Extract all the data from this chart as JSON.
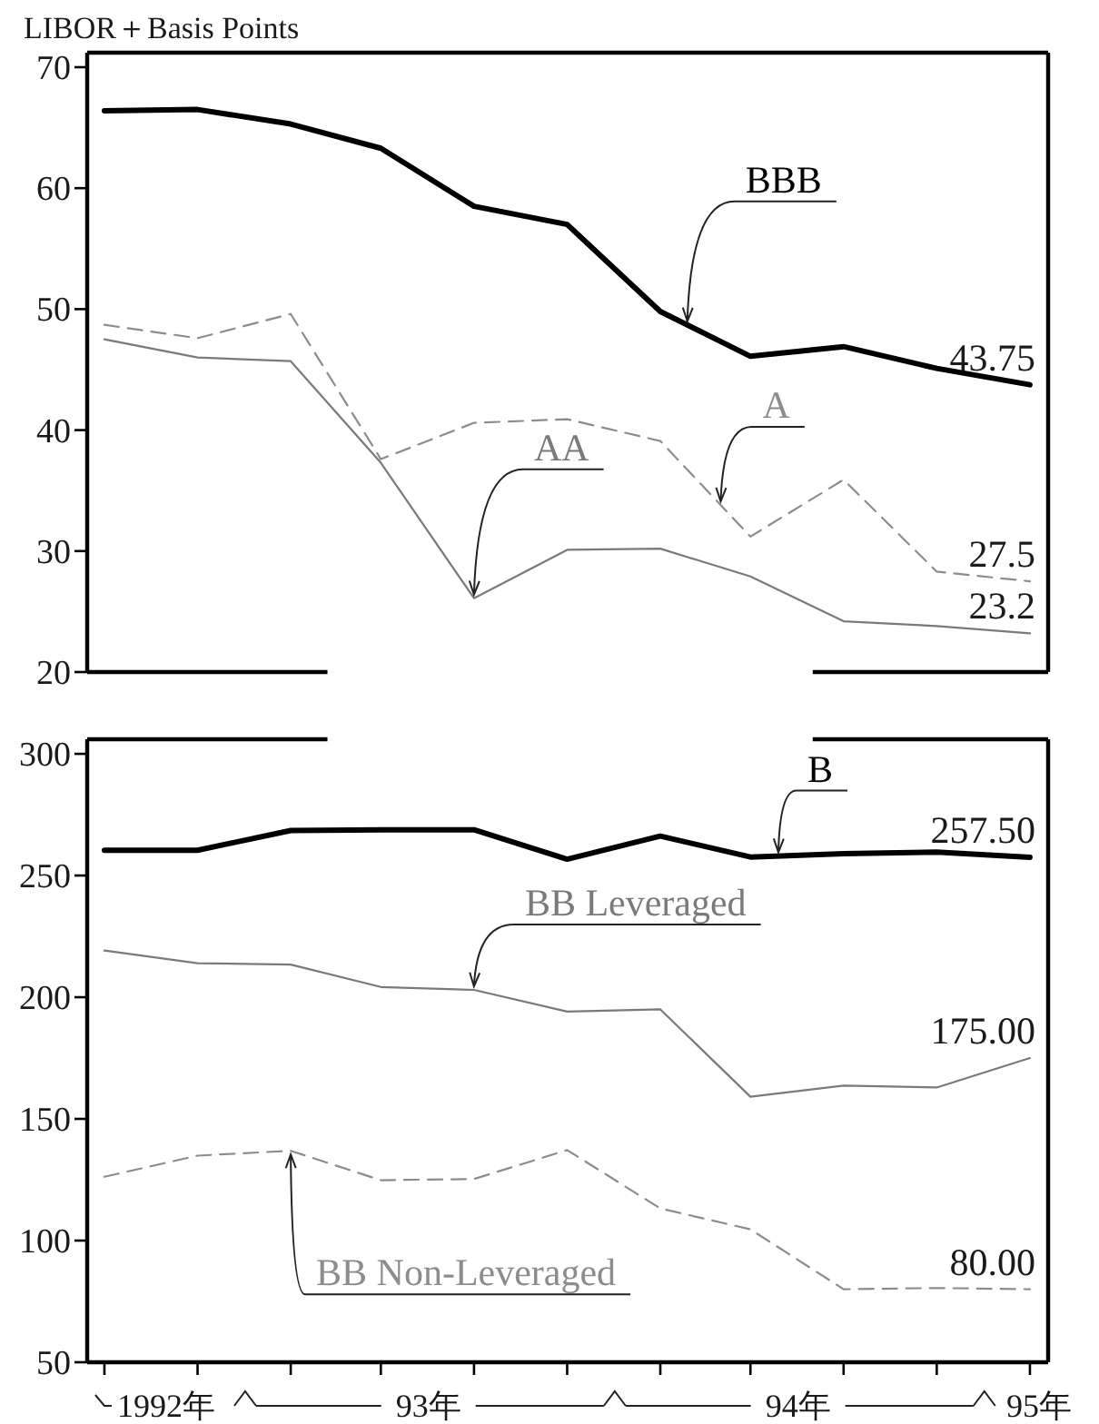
{
  "chart_data": [
    {
      "type": "line",
      "ylabel": "LIBOR＋Basis Points",
      "x": [
        "1992-08-15",
        "1992-11-15",
        "1993-02-15",
        "1993-05-15",
        "1993-08-15",
        "1993-11-15",
        "1994-02-15",
        "1994-05-15",
        "1994-08-15",
        "1994-11-15",
        "1995-02-15"
      ],
      "xlim": [
        "1992-07-29",
        "1995-03-05"
      ],
      "ylim": [
        20,
        71.2
      ],
      "yticks": [
        20,
        30,
        40,
        50,
        60,
        70
      ],
      "tick_labels": "y",
      "series": [
        {
          "name": "BBB",
          "color": "#000000",
          "line_style": "solid",
          "values": [
            66.4,
            66.5,
            65.3,
            63.3,
            58.5,
            57.0,
            49.8,
            46.1,
            46.9,
            45.1,
            43.75
          ],
          "value_labels": [
            null,
            null,
            null,
            null,
            null,
            null,
            null,
            null,
            null,
            null,
            "43.75"
          ]
        },
        {
          "name": "A",
          "color": "#8c8c8c",
          "line_style": "dashed",
          "values": [
            48.7,
            47.6,
            49.6,
            37.6,
            40.6,
            40.9,
            39.1,
            31.2,
            35.9,
            28.3,
            27.5
          ],
          "value_labels": [
            null,
            null,
            null,
            null,
            null,
            null,
            null,
            null,
            null,
            null,
            "27.5"
          ]
        },
        {
          "name": "AA",
          "color": "#7a7a7a",
          "line_style": "solid",
          "values": [
            47.5,
            46.0,
            45.7,
            37.3,
            26.1,
            30.1,
            30.2,
            27.9,
            24.2,
            23.8,
            23.2
          ],
          "value_labels": [
            null,
            null,
            null,
            null,
            null,
            null,
            null,
            null,
            null,
            null,
            "23.2"
          ]
        }
      ]
    },
    {
      "type": "line",
      "x": [
        "1992-08-15",
        "1992-11-15",
        "1993-02-15",
        "1993-05-15",
        "1993-08-15",
        "1993-11-15",
        "1994-02-15",
        "1994-05-15",
        "1994-08-15",
        "1994-11-15",
        "1995-02-15"
      ],
      "xlim": [
        "1992-07-29",
        "1995-03-05"
      ],
      "ylim": [
        50,
        306
      ],
      "yticks": [
        50,
        100,
        150,
        200,
        250,
        300
      ],
      "xticks": [
        {
          "value": "1992-08-15",
          "label": null
        },
        {
          "value": "1992-11-15",
          "label": null
        },
        {
          "value": "1993-02-15",
          "label": null
        },
        {
          "value": "1993-05-15",
          "label": null
        },
        {
          "value": "1993-08-15",
          "label": null
        },
        {
          "value": "1993-11-15",
          "label": null
        },
        {
          "value": "1994-02-15",
          "label": null
        },
        {
          "value": "1994-05-15",
          "label": null
        },
        {
          "value": "1994-08-15",
          "label": null
        },
        {
          "value": "1994-11-15",
          "label": null
        },
        {
          "value": "1995-02-15",
          "label": null
        },
        {
          "value": "1992-10-15",
          "label": "1992年"
        },
        {
          "value": "1993-07-01",
          "label": "93年"
        },
        {
          "value": "1994-07-01",
          "label": "94年"
        },
        {
          "value": "1995-02-24",
          "label": "95年"
        }
      ],
      "series": [
        {
          "name": "B",
          "color": "#000000",
          "line_style": "solid",
          "values": [
            260.4,
            260.4,
            268.5,
            268.8,
            268.8,
            256.7,
            266.2,
            257.6,
            259.0,
            259.6,
            257.5
          ],
          "value_labels": [
            null,
            null,
            null,
            null,
            null,
            null,
            null,
            null,
            null,
            null,
            "257.50"
          ]
        },
        {
          "name": "BB Leveraged",
          "color": "#7a7a7a",
          "line_style": "solid",
          "values": [
            219.2,
            214.0,
            213.4,
            204.2,
            203.0,
            194.1,
            195.0,
            159.1,
            163.7,
            162.9,
            175.0
          ],
          "value_labels": [
            null,
            null,
            null,
            null,
            null,
            null,
            null,
            null,
            null,
            null,
            "175.00"
          ]
        },
        {
          "name": "BB Non-Leveraged",
          "color": "#8c8c8c",
          "line_style": "dashed",
          "values": [
            126.2,
            134.9,
            136.9,
            124.8,
            125.3,
            137.2,
            113.2,
            104.6,
            80.0,
            80.5,
            80.0
          ],
          "value_labels": [
            null,
            null,
            null,
            null,
            null,
            null,
            null,
            null,
            null,
            null,
            "80.00"
          ]
        }
      ]
    }
  ]
}
